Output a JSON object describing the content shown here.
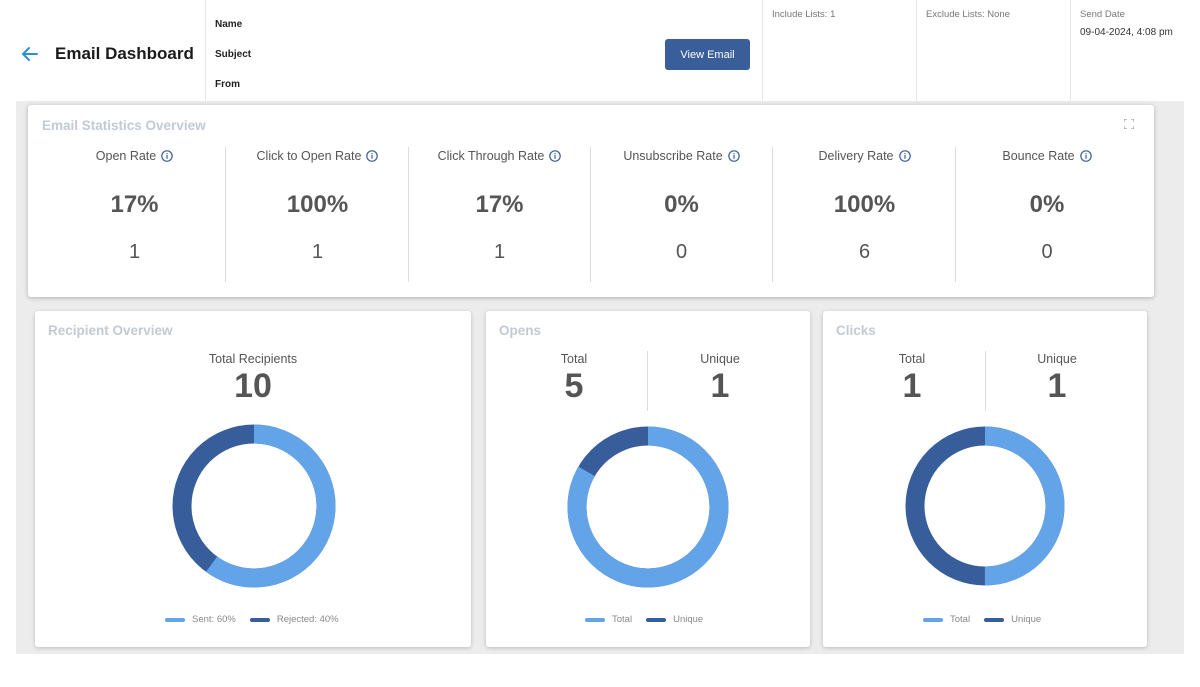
{
  "header": {
    "title": "Email Dashboard",
    "name_label": "Name",
    "subject_label": "Subject",
    "from_label": "From",
    "view_email_label": "View Email",
    "include_lists": "Include Lists: 1",
    "exclude_lists": "Exclude Lists: None",
    "send_date_label": "Send Date",
    "send_date_value": "09-04-2024, 4:08 pm"
  },
  "stats": {
    "title": "Email Statistics Overview",
    "items": [
      {
        "label": "Open Rate",
        "pct": "17%",
        "count": "1"
      },
      {
        "label": "Click to Open Rate",
        "pct": "100%",
        "count": "1"
      },
      {
        "label": "Click Through Rate",
        "pct": "17%",
        "count": "1"
      },
      {
        "label": "Unsubscribe Rate",
        "pct": "0%",
        "count": "0"
      },
      {
        "label": "Delivery Rate",
        "pct": "100%",
        "count": "6"
      },
      {
        "label": "Bounce Rate",
        "pct": "0%",
        "count": "0"
      }
    ]
  },
  "recipients": {
    "title": "Recipient Overview",
    "total_label": "Total Recipients",
    "total_value": "10",
    "legend": [
      "Sent: 60%",
      "Rejected: 40%"
    ],
    "sent_fraction": 0.6
  },
  "opens": {
    "title": "Opens",
    "total_label": "Total",
    "total_value": "5",
    "unique_label": "Unique",
    "unique_value": "1",
    "legend": [
      "Total",
      "Unique"
    ],
    "total_fraction": 0.8333
  },
  "clicks": {
    "title": "Clicks",
    "total_label": "Total",
    "total_value": "1",
    "unique_label": "Unique",
    "unique_value": "1",
    "legend": [
      "Total",
      "Unique"
    ],
    "total_fraction": 0.5
  },
  "colors": {
    "light_blue": "#63a4e8",
    "dark_blue": "#385d9b",
    "accent": "#2a8fd6"
  }
}
